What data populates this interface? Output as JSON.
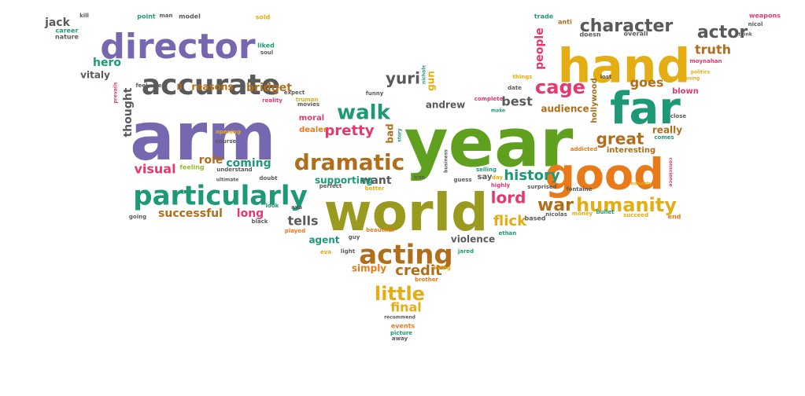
{
  "palette": {
    "purple": "#7766b0",
    "olive": "#9a9a1e",
    "brown": "#b06e1a",
    "gray": "#5a5a5a",
    "teal": "#1e9978",
    "green": "#5fa11f",
    "orange": "#e87a1a",
    "pink": "#e4386f",
    "gold": "#e3ad13",
    "lightgreen": "#8fbf2a"
  },
  "words": [
    {
      "text": "arm",
      "color": "purple",
      "size": 84
    },
    {
      "text": "year",
      "color": "green",
      "size": 86
    },
    {
      "text": "world",
      "color": "olive",
      "size": 66
    },
    {
      "text": "hand",
      "color": "gold",
      "size": 60
    },
    {
      "text": "good",
      "color": "orange",
      "size": 54
    },
    {
      "text": "far",
      "color": "teal",
      "size": 56
    },
    {
      "text": "director",
      "color": "purple",
      "size": 44
    },
    {
      "text": "particularly",
      "color": "teal",
      "size": 34
    },
    {
      "text": "accurate",
      "color": "gray",
      "size": 36
    },
    {
      "text": "acting",
      "color": "brown",
      "size": 34
    },
    {
      "text": "dramatic",
      "color": "brown",
      "size": 28
    },
    {
      "text": "humanity",
      "color": "gold",
      "size": 24
    },
    {
      "text": "war",
      "color": "brown",
      "size": 22
    },
    {
      "text": "character",
      "color": "gray",
      "size": 22
    },
    {
      "text": "actor",
      "color": "gray",
      "size": 22
    },
    {
      "text": "cage",
      "color": "pink",
      "size": 24
    },
    {
      "text": "walk",
      "color": "teal",
      "size": 26
    },
    {
      "text": "little",
      "color": "gold",
      "size": 24
    },
    {
      "text": "great",
      "color": "brown",
      "size": 20
    },
    {
      "text": "history",
      "color": "teal",
      "size": 18
    },
    {
      "text": "credit",
      "color": "brown",
      "size": 18
    },
    {
      "text": "lord",
      "color": "pink",
      "size": 20
    },
    {
      "text": "flick",
      "color": "gold",
      "size": 18
    },
    {
      "text": "pretty",
      "color": "pink",
      "size": 18
    },
    {
      "text": "truth",
      "color": "brown",
      "size": 16
    },
    {
      "text": "goes",
      "color": "brown",
      "size": 16
    },
    {
      "text": "yuri",
      "color": "gray",
      "size": 20
    },
    {
      "text": "best",
      "color": "gray",
      "size": 16
    },
    {
      "text": "audience",
      "color": "brown",
      "size": 12
    },
    {
      "text": "people",
      "color": "pink",
      "size": 14
    },
    {
      "text": "visual",
      "color": "pink",
      "size": 16
    },
    {
      "text": "coming",
      "color": "teal",
      "size": 14
    },
    {
      "text": "role",
      "color": "brown",
      "size": 14
    },
    {
      "text": "tells",
      "color": "gray",
      "size": 16
    },
    {
      "text": "long",
      "color": "pink",
      "size": 14
    },
    {
      "text": "successful",
      "color": "brown",
      "size": 14
    },
    {
      "text": "final",
      "color": "gold",
      "size": 16
    },
    {
      "text": "agent",
      "color": "teal",
      "size": 12
    },
    {
      "text": "simply",
      "color": "orange",
      "size": 12
    },
    {
      "text": "violence",
      "color": "gray",
      "size": 12
    },
    {
      "text": "want",
      "color": "gray",
      "size": 14
    },
    {
      "text": "thought",
      "color": "gray",
      "size": 14
    },
    {
      "text": "hero",
      "color": "teal",
      "size": 14
    },
    {
      "text": "bridget",
      "color": "brown",
      "size": 14
    },
    {
      "text": "reasons",
      "color": "brown",
      "size": 12
    },
    {
      "text": "andrew",
      "color": "gray",
      "size": 12
    },
    {
      "text": "supporting",
      "color": "teal",
      "size": 12
    },
    {
      "text": "really",
      "color": "brown",
      "size": 12
    },
    {
      "text": "interesting",
      "color": "brown",
      "size": 10
    },
    {
      "text": "hollywood",
      "color": "brown",
      "size": 10
    },
    {
      "text": "jack",
      "color": "gray",
      "size": 14
    },
    {
      "text": "vitaly",
      "color": "gray",
      "size": 12
    },
    {
      "text": "bad",
      "color": "brown",
      "size": 12
    },
    {
      "text": "moral",
      "color": "pink",
      "size": 10
    },
    {
      "text": "dealer",
      "color": "orange",
      "size": 10
    },
    {
      "text": "gun",
      "color": "gold",
      "size": 12
    },
    {
      "text": "say",
      "color": "gray",
      "size": 10
    },
    {
      "text": "blown",
      "color": "pink",
      "size": 10
    },
    {
      "text": "ll",
      "color": "brown",
      "size": 10
    },
    {
      "text": "weapons",
      "color": "pink",
      "size": 8
    },
    {
      "text": "feeling",
      "color": "lightgreen",
      "size": 8
    },
    {
      "text": "understand",
      "color": "gray",
      "size": 7
    },
    {
      "text": "based",
      "color": "gray",
      "size": 8
    },
    {
      "text": "nicolas",
      "color": "gray",
      "size": 7
    },
    {
      "text": "money",
      "color": "gold",
      "size": 7
    },
    {
      "text": "bullet",
      "color": "teal",
      "size": 7
    },
    {
      "text": "succeed",
      "color": "gold",
      "size": 7
    },
    {
      "text": "end",
      "color": "orange",
      "size": 8
    },
    {
      "text": "ethan",
      "color": "teal",
      "size": 7
    },
    {
      "text": "jared",
      "color": "teal",
      "size": 7
    },
    {
      "text": "living",
      "color": "gold",
      "size": 7
    },
    {
      "text": "brother",
      "color": "orange",
      "size": 7
    },
    {
      "text": "recommend",
      "color": "gray",
      "size": 6
    },
    {
      "text": "events",
      "color": "orange",
      "size": 8
    },
    {
      "text": "picture",
      "color": "teal",
      "size": 7
    },
    {
      "text": "away",
      "color": "gray",
      "size": 7
    },
    {
      "text": "beautiful",
      "color": "orange",
      "size": 7
    },
    {
      "text": "guy",
      "color": "gray",
      "size": 7
    },
    {
      "text": "light",
      "color": "gray",
      "size": 7
    },
    {
      "text": "eva",
      "color": "gold",
      "size": 7
    },
    {
      "text": "played",
      "color": "orange",
      "size": 7
    },
    {
      "text": "black",
      "color": "gray",
      "size": 7
    },
    {
      "text": "look",
      "color": "teal",
      "size": 7
    },
    {
      "text": "going",
      "color": "gray",
      "size": 7
    },
    {
      "text": "ultimate",
      "color": "gray",
      "size": 6
    },
    {
      "text": "course",
      "color": "gray",
      "size": 7
    },
    {
      "text": "opening",
      "color": "gold",
      "size": 7
    },
    {
      "text": "doubt",
      "color": "gray",
      "size": 7
    },
    {
      "text": "ava",
      "color": "gray",
      "size": 7
    },
    {
      "text": "perfect",
      "color": "gray",
      "size": 7
    },
    {
      "text": "better",
      "color": "gold",
      "size": 7
    },
    {
      "text": "business",
      "color": "gray",
      "size": 6
    },
    {
      "text": "guess",
      "color": "gray",
      "size": 7
    },
    {
      "text": "selling",
      "color": "teal",
      "size": 7
    },
    {
      "text": "day",
      "color": "gold",
      "size": 7
    },
    {
      "text": "highly",
      "color": "pink",
      "size": 7
    },
    {
      "text": "surprised",
      "color": "gray",
      "size": 7
    },
    {
      "text": "fontaine",
      "color": "gray",
      "size": 7
    },
    {
      "text": "honesty",
      "color": "gold",
      "size": 6
    },
    {
      "text": "conscience",
      "color": "pink",
      "size": 6
    },
    {
      "text": "addicted",
      "color": "orange",
      "size": 7
    },
    {
      "text": "comes",
      "color": "teal",
      "size": 7
    },
    {
      "text": "close",
      "color": "gray",
      "size": 7
    },
    {
      "text": "lost",
      "color": "gray",
      "size": 7
    },
    {
      "text": "running",
      "color": "gold",
      "size": 6
    },
    {
      "text": "politics",
      "color": "gold",
      "size": 6
    },
    {
      "text": "moynahan",
      "color": "pink",
      "size": 7
    },
    {
      "text": "think",
      "color": "gray",
      "size": 6
    },
    {
      "text": "nicol",
      "color": "gray",
      "size": 7
    },
    {
      "text": "overall",
      "color": "gray",
      "size": 8
    },
    {
      "text": "doesn",
      "color": "gray",
      "size": 8
    },
    {
      "text": "anti",
      "color": "brown",
      "size": 8
    },
    {
      "text": "trade",
      "color": "teal",
      "size": 8
    },
    {
      "text": "things",
      "color": "gold",
      "size": 7
    },
    {
      "text": "date",
      "color": "gray",
      "size": 7
    },
    {
      "text": "complete",
      "color": "pink",
      "size": 7
    },
    {
      "text": "make",
      "color": "teal",
      "size": 6
    },
    {
      "text": "story",
      "color": "teal",
      "size": 6
    },
    {
      "text": "funny",
      "color": "gray",
      "size": 7
    },
    {
      "text": "nichols",
      "color": "teal",
      "size": 6
    },
    {
      "text": "iran",
      "color": "gray",
      "size": 6
    },
    {
      "text": "truman",
      "color": "gold",
      "size": 7
    },
    {
      "text": "movies",
      "color": "gray",
      "size": 7
    },
    {
      "text": "expect",
      "color": "gray",
      "size": 7
    },
    {
      "text": "reality",
      "color": "pink",
      "size": 7
    },
    {
      "text": "feel",
      "color": "gray",
      "size": 7
    },
    {
      "text": "real",
      "color": "gray",
      "size": 7
    },
    {
      "text": "prevails",
      "color": "pink",
      "size": 6
    },
    {
      "text": "liked",
      "color": "teal",
      "size": 8
    },
    {
      "text": "soul",
      "color": "gray",
      "size": 7
    },
    {
      "text": "sold",
      "color": "gold",
      "size": 8
    },
    {
      "text": "model",
      "color": "gray",
      "size": 8
    },
    {
      "text": "point",
      "color": "teal",
      "size": 8
    },
    {
      "text": "man",
      "color": "gray",
      "size": 7
    },
    {
      "text": "kill",
      "color": "gray",
      "size": 7
    },
    {
      "text": "career",
      "color": "teal",
      "size": 8
    },
    {
      "text": "nature",
      "color": "gray",
      "size": 8
    }
  ]
}
